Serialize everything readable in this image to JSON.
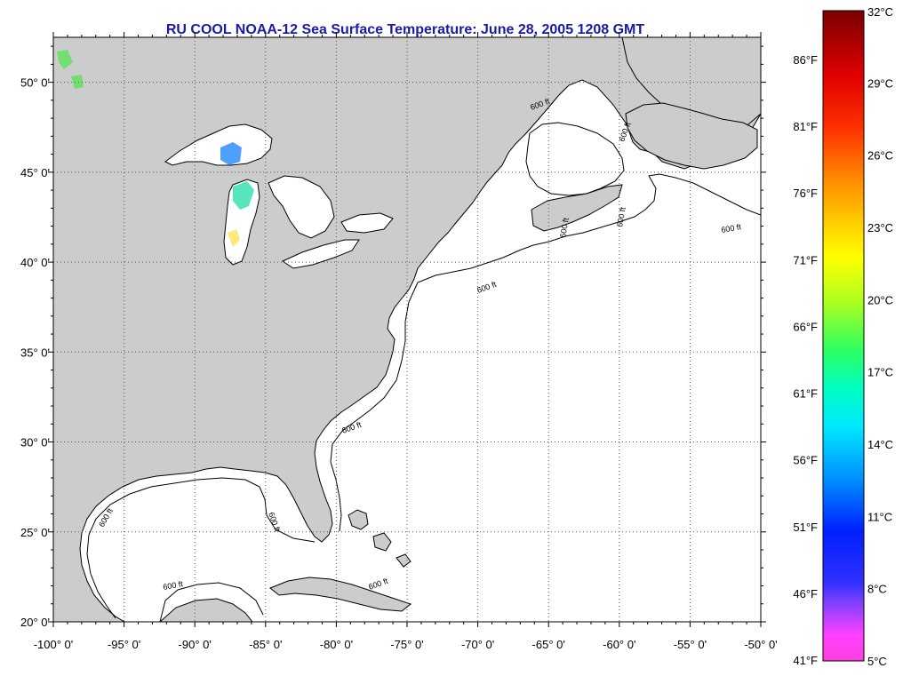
{
  "title": "RU COOL  NOAA-12  Sea Surface Temperature:  June 28, 2005 1208 GMT",
  "map": {
    "lon_range": [
      -100,
      -50
    ],
    "lat_range": [
      20,
      52.5
    ],
    "lon_ticks": [
      "-100° 0'",
      "-95° 0'",
      "-90° 0'",
      "-85° 0'",
      "-80° 0'",
      "-75° 0'",
      "-70° 0'",
      "-65° 0'",
      "-60° 0'",
      "-55° 0'",
      "-50° 0'"
    ],
    "lat_ticks": [
      "20° 0'",
      "25° 0'",
      "30° 0'",
      "35° 0'",
      "40° 0'",
      "45° 0'",
      "50° 0'"
    ],
    "grid": true,
    "land_color": "#cccccc",
    "water_color": "#ffffff",
    "contour_label": "600 ft",
    "contour_label_count": 11
  },
  "colorbar": {
    "orientation": "vertical",
    "position": "right",
    "celsius_labels": [
      "32°C",
      "29°C",
      "26°C",
      "23°C",
      "20°C",
      "17°C",
      "14°C",
      "11°C",
      "8°C",
      "5°C"
    ],
    "fahrenheit_labels": [
      "86°F",
      "81°F",
      "76°F",
      "71°F",
      "66°F",
      "61°F",
      "56°F",
      "51°F",
      "46°F",
      "41°F"
    ],
    "gradient": [
      "#800000",
      "#e00000",
      "#ff3000",
      "#ff8000",
      "#ffc000",
      "#ffff00",
      "#a0ff20",
      "#20ff60",
      "#00ffc0",
      "#00e0ff",
      "#0080ff",
      "#0020ff",
      "#4040ff",
      "#a040ff",
      "#ff40ff",
      "#ff40e0"
    ]
  }
}
